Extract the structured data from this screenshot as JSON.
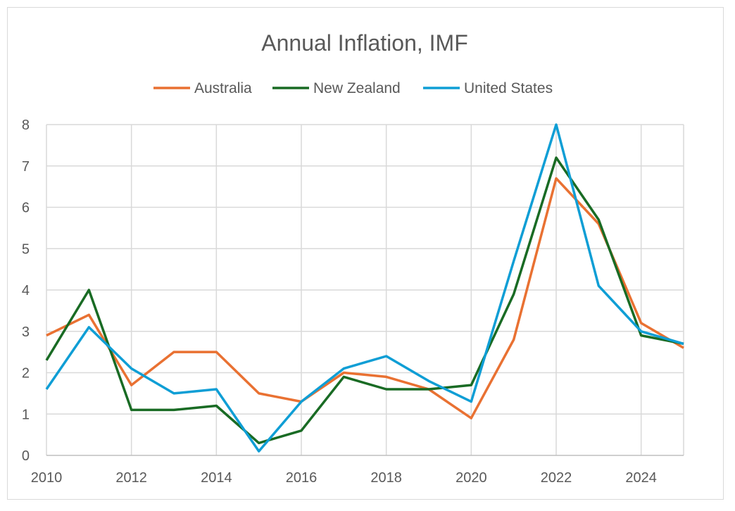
{
  "chart_data": {
    "type": "line",
    "title": "Annual Inflation, IMF",
    "xlabel": "",
    "ylabel": "",
    "x": [
      2010,
      2011,
      2012,
      2013,
      2014,
      2015,
      2016,
      2017,
      2018,
      2019,
      2020,
      2021,
      2022,
      2023,
      2024,
      2025
    ],
    "x_ticks": [
      2010,
      2012,
      2014,
      2016,
      2018,
      2020,
      2022,
      2024
    ],
    "xlim": [
      2010,
      2025
    ],
    "y_ticks": [
      0,
      1,
      2,
      3,
      4,
      5,
      6,
      7,
      8
    ],
    "ylim": [
      0,
      8
    ],
    "grid": true,
    "legend_position": "top",
    "series": [
      {
        "name": "Australia",
        "color": "#E97132",
        "values": [
          2.9,
          3.4,
          1.7,
          2.5,
          2.5,
          1.5,
          1.3,
          2.0,
          1.9,
          1.6,
          0.9,
          2.8,
          6.7,
          5.6,
          3.2,
          2.6
        ]
      },
      {
        "name": "New Zealand",
        "color": "#196B24",
        "values": [
          2.3,
          4.0,
          1.1,
          1.1,
          1.2,
          0.3,
          0.6,
          1.9,
          1.6,
          1.6,
          1.7,
          3.9,
          7.2,
          5.7,
          2.9,
          2.7
        ]
      },
      {
        "name": "United States",
        "color": "#0F9ED5",
        "values": [
          1.6,
          3.1,
          2.1,
          1.5,
          1.6,
          0.1,
          1.3,
          2.1,
          2.4,
          1.8,
          1.3,
          4.7,
          8.0,
          4.1,
          3.0,
          2.7
        ]
      }
    ]
  }
}
